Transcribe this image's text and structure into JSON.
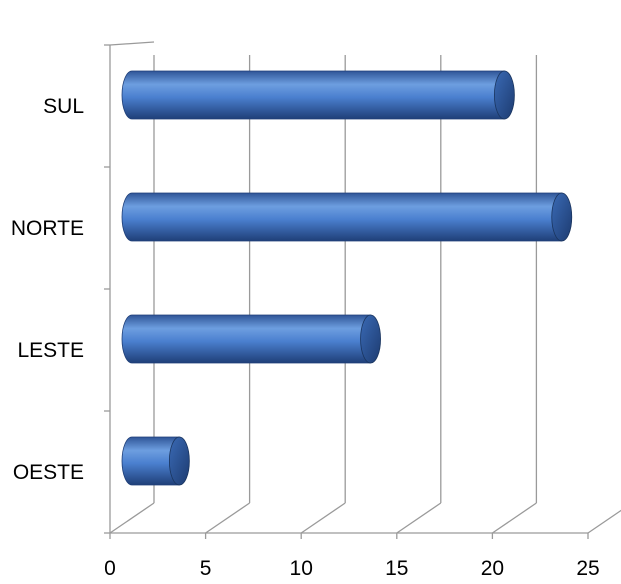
{
  "chart_data": {
    "type": "bar",
    "orientation": "horizontal",
    "style": "3d-cylinder",
    "categories": [
      "SUL",
      "NORTE",
      "LESTE",
      "OESTE"
    ],
    "values": [
      20,
      23,
      13,
      3
    ],
    "xlim": [
      0,
      25
    ],
    "x_ticks": [
      0,
      5,
      10,
      15,
      20,
      25
    ],
    "grid": true,
    "legend": "none",
    "bar_color": "#4f81bd"
  }
}
